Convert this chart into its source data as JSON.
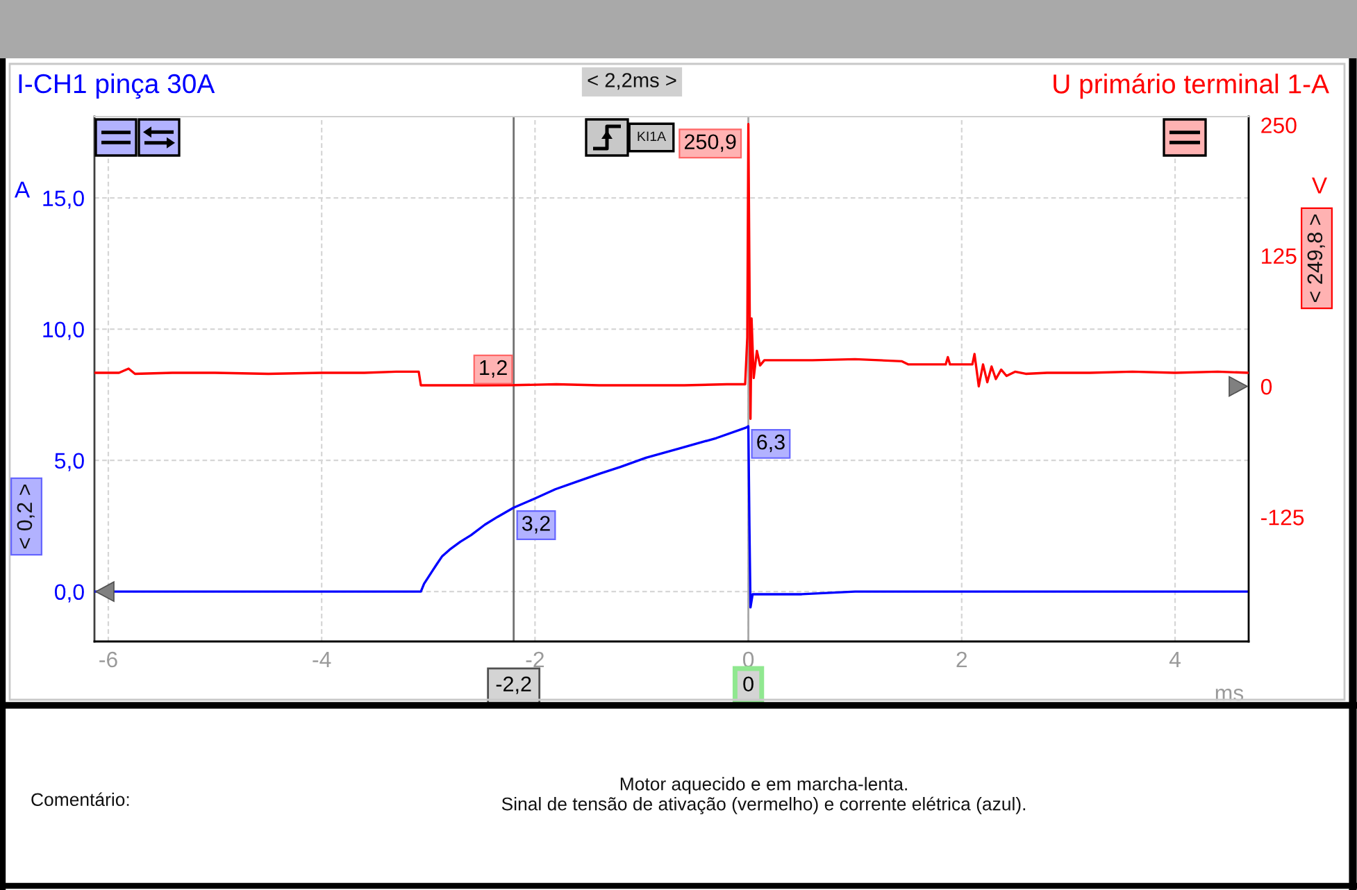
{
  "chart_data": {
    "type": "line",
    "xlabel": "ms",
    "ylabel": "A",
    "y2label": "V",
    "xlim": [
      -6.13,
      4.69
    ],
    "xticks": [
      -6,
      -4,
      -2,
      0,
      2,
      4
    ],
    "ylim": [
      -1.9,
      18.1
    ],
    "yticks": [
      {
        "value": 0,
        "label": "0,0"
      },
      {
        "value": 5,
        "label": "5,0"
      },
      {
        "value": 10,
        "label": "10,0"
      },
      {
        "value": 15,
        "label": "15,0"
      }
    ],
    "y2lim": [
      -244,
      258
    ],
    "y2ticks": [
      -125,
      0,
      125,
      250
    ],
    "grid": true,
    "series": [
      {
        "name": "I-CH1 pinça 30A",
        "color": "#0000ff",
        "x": [
          -6.13,
          -5.5,
          -5.0,
          -4.5,
          -4.0,
          -3.6,
          -3.3,
          -3.07,
          -3.04,
          -3.0,
          -2.96,
          -2.92,
          -2.87,
          -2.8,
          -2.7,
          -2.6,
          -2.47,
          -2.35,
          -2.2,
          -2.0,
          -1.81,
          -1.6,
          -1.39,
          -1.2,
          -0.96,
          -0.65,
          -0.3,
          -0.02,
          0,
          0.01,
          0.02,
          0.04,
          0.1,
          0.5,
          1.0,
          2.0,
          3.0,
          4.0,
          4.69
        ],
        "values": [
          0,
          0,
          0,
          0,
          0,
          0,
          0,
          0,
          0.3,
          0.55,
          0.8,
          1.05,
          1.35,
          1.6,
          1.9,
          2.15,
          2.55,
          2.85,
          3.2,
          3.55,
          3.9,
          4.2,
          4.5,
          4.75,
          5.1,
          5.45,
          5.85,
          6.25,
          6.3,
          2.5,
          -0.6,
          -0.1,
          -0.1,
          -0.1,
          0,
          0,
          0,
          0,
          0
        ],
        "value_labels": [
          null,
          null,
          null,
          null,
          null,
          null,
          null,
          null,
          null,
          null,
          null,
          null,
          null,
          null,
          null,
          null,
          null,
          null,
          "3,2",
          null,
          null,
          null,
          null,
          null,
          null,
          null,
          null,
          null,
          "6,3",
          null,
          null,
          null,
          null,
          null,
          null,
          null,
          null,
          null,
          null
        ]
      },
      {
        "name": "U primário terminal 1-A",
        "color": "#ff0000",
        "axis": "y2",
        "x": [
          -6.13,
          -5.9,
          -5.81,
          -5.75,
          -5.4,
          -5.0,
          -4.5,
          -4.0,
          -3.6,
          -3.3,
          -3.09,
          -3.07,
          -2.8,
          -2.5,
          -2.2,
          -1.8,
          -1.4,
          -1.0,
          -0.6,
          -0.2,
          -0.03,
          -0.01,
          0,
          0.02,
          0.03,
          0.05,
          0.08,
          0.11,
          0.15,
          0.6,
          1.0,
          1.44,
          1.5,
          1.85,
          1.87,
          1.89,
          2.1,
          2.12,
          2.16,
          2.2,
          2.24,
          2.28,
          2.32,
          2.37,
          2.42,
          2.5,
          2.6,
          2.8,
          3.2,
          3.6,
          4.0,
          4.4,
          4.69
        ],
        "values": [
          13,
          13,
          17,
          12,
          13,
          13,
          12,
          13,
          13,
          14,
          14,
          1,
          1,
          1,
          1.2,
          2,
          1,
          1,
          1,
          2,
          2,
          47,
          250.9,
          -31,
          65,
          8,
          34,
          20,
          25,
          25,
          26,
          24,
          21,
          21,
          28,
          21,
          21,
          31,
          0,
          21,
          4,
          19,
          7,
          16,
          10,
          14,
          12,
          13,
          13,
          14,
          13,
          14,
          13
        ],
        "value_labels": [
          null,
          null,
          null,
          null,
          null,
          null,
          null,
          null,
          null,
          null,
          null,
          null,
          null,
          null,
          "1,2",
          null,
          null,
          null,
          null,
          null,
          null,
          null,
          "250,9",
          null,
          null,
          null,
          null,
          null,
          null,
          null,
          null,
          null,
          null,
          null,
          null,
          null,
          null,
          null,
          null,
          null,
          null,
          null,
          null,
          null,
          null,
          null,
          null,
          null,
          null,
          null,
          null,
          null,
          null
        ]
      }
    ],
    "ref_lines": [
      {
        "axis": "x",
        "value": -2.2,
        "label": "-2,2",
        "color": "#707070"
      },
      {
        "axis": "x",
        "value": 0,
        "label": "0",
        "color": "#a8a8a8"
      }
    ],
    "annotations": [
      "< 2,2ms >",
      "< 249,8 >",
      "< 0,2 >",
      "KI1A",
      "Comentário:",
      "Motor aquecido e em marcha-lenta.\nSinal de tensão de ativação (vermelho) e corrente elétrica (azul)."
    ]
  }
}
